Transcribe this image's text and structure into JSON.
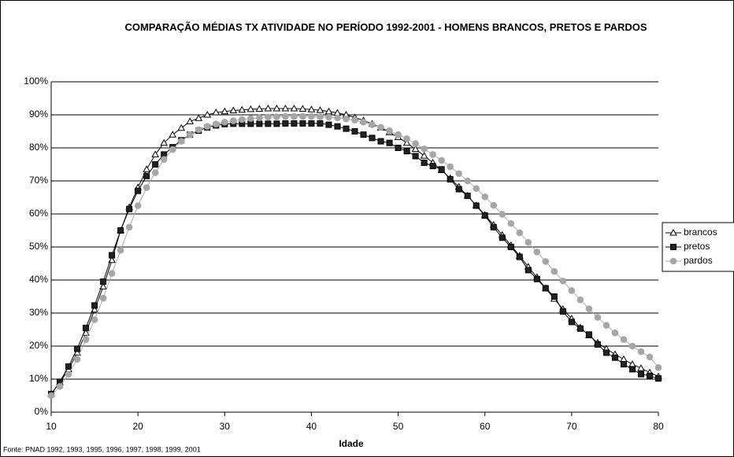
{
  "chart_data": {
    "type": "line",
    "title": "COMPARAÇÃO MÉDIAS TX ATIVIDADE NO PERÍODO 1992-2001  - HOMENS BRANCOS, PRETOS E PARDOS",
    "x_label": "Idade",
    "source": "Fonte: PNAD 1992, 1993, 1995, 1996, 1997, 1998, 1999, 2001",
    "x": [
      10,
      11,
      12,
      13,
      14,
      15,
      16,
      17,
      18,
      19,
      20,
      21,
      22,
      23,
      24,
      25,
      26,
      27,
      28,
      29,
      30,
      31,
      32,
      33,
      34,
      35,
      36,
      37,
      38,
      39,
      40,
      41,
      42,
      43,
      44,
      45,
      46,
      47,
      48,
      49,
      50,
      51,
      52,
      53,
      54,
      55,
      56,
      57,
      58,
      59,
      60,
      61,
      62,
      63,
      64,
      65,
      66,
      67,
      68,
      69,
      70,
      71,
      72,
      73,
      74,
      75,
      76,
      77,
      78,
      79,
      80
    ],
    "xlim": [
      10,
      80
    ],
    "xticks": [
      10,
      20,
      30,
      40,
      50,
      60,
      70,
      80
    ],
    "ylim": [
      0,
      100
    ],
    "yticks": [
      {
        "value": 0,
        "label": "0%"
      },
      {
        "value": 10,
        "label": "10%"
      },
      {
        "value": 20,
        "label": "20%"
      },
      {
        "value": 30,
        "label": "30%"
      },
      {
        "value": 40,
        "label": "40%"
      },
      {
        "value": 50,
        "label": "50%"
      },
      {
        "value": 60,
        "label": "60%"
      },
      {
        "value": 70,
        "label": "70%"
      },
      {
        "value": 80,
        "label": "80%"
      },
      {
        "value": 90,
        "label": "90%"
      },
      {
        "value": 100,
        "label": "100%"
      }
    ],
    "grid": true,
    "legend": "right",
    "series": [
      {
        "name": "brancos",
        "color": "#000000",
        "marker": "triangle",
        "marker_fill": "#ffffff",
        "values": [
          5.5,
          9,
          13,
          18,
          24,
          31,
          38,
          46,
          55,
          62,
          68,
          73.5,
          78,
          81.5,
          84,
          86,
          88,
          89,
          90,
          90.7,
          91,
          91.3,
          91.5,
          91.7,
          91.8,
          91.9,
          91.9,
          91.9,
          91.9,
          91.8,
          91.6,
          91.4,
          91,
          90.6,
          90,
          89.2,
          88.3,
          87.3,
          86.1,
          84.7,
          83.2,
          81.5,
          79.6,
          77.6,
          75.5,
          73.2,
          70.8,
          68.2,
          65.5,
          62.6,
          59.7,
          56.7,
          53.6,
          50.5,
          47.3,
          44,
          40.8,
          37.5,
          34.3,
          31.2,
          28.3,
          25.6,
          23.2,
          21,
          19.2,
          17.5,
          16,
          14.5,
          13.3,
          12,
          10.8
        ]
      },
      {
        "name": "pretos",
        "color": "#000000",
        "marker": "square",
        "marker_fill": "#222222",
        "values": [
          5.5,
          9.2,
          13.8,
          19.2,
          25.5,
          32.3,
          39.5,
          47.5,
          55,
          61.5,
          67,
          71.5,
          75,
          78,
          80.2,
          82.3,
          84,
          85.2,
          86.2,
          86.8,
          87.2,
          87.3,
          87.3,
          87.3,
          87.3,
          87.3,
          87.3,
          87.4,
          87.4,
          87.4,
          87.4,
          87.4,
          87,
          86.5,
          85.8,
          85,
          84,
          83,
          82,
          81.5,
          80,
          79,
          77.5,
          75.5,
          74.5,
          73.5,
          70.5,
          67.5,
          65.5,
          62.5,
          59.5,
          56,
          52.8,
          50,
          47,
          43,
          40.3,
          37.5,
          35,
          30.5,
          27.3,
          25.3,
          23.5,
          20.5,
          18,
          16.5,
          14.5,
          13,
          11.5,
          11,
          10.2
        ]
      },
      {
        "name": "pardos",
        "color": "#aaaaaa",
        "marker": "circle",
        "marker_fill": "#a6a6a6",
        "values": [
          5,
          7.8,
          11.5,
          16,
          22,
          28,
          34.5,
          42,
          49,
          56,
          62.5,
          68,
          72.5,
          76.5,
          79.5,
          82,
          84,
          85.5,
          86.5,
          87.2,
          87.8,
          88.2,
          88.6,
          88.9,
          89.1,
          89.3,
          89.4,
          89.5,
          89.5,
          89.5,
          89.5,
          89.4,
          89.3,
          89.1,
          88.8,
          88.4,
          87.8,
          87,
          86.2,
          85.2,
          84,
          82.8,
          81.3,
          79.7,
          78,
          76.2,
          74.3,
          72.2,
          70,
          67.7,
          65.2,
          62.6,
          59.9,
          57.1,
          54.3,
          51.4,
          48.5,
          45.6,
          42.6,
          39.7,
          36.8,
          34,
          31.3,
          28.7,
          26.3,
          24,
          22,
          20,
          18.3,
          16.7,
          13.5
        ]
      }
    ]
  }
}
